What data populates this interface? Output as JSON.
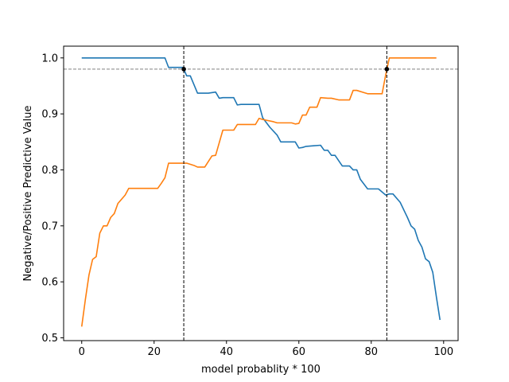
{
  "chart_data": {
    "type": "line",
    "title": "",
    "xlabel": "model probablity * 100",
    "ylabel": "Negative/Positive Predictive Value",
    "xlim": [
      -5,
      104
    ],
    "ylim": [
      0.495,
      1.021
    ],
    "xticks": [
      0,
      20,
      40,
      60,
      80,
      100
    ],
    "xtick_labels": [
      "0",
      "20",
      "40",
      "60",
      "80",
      "100"
    ],
    "yticks": [
      0.5,
      0.6,
      0.7,
      0.8,
      0.9,
      1.0
    ],
    "ytick_labels": [
      "0.5",
      "0.6",
      "0.7",
      "0.8",
      "0.9",
      "1.0"
    ],
    "grid": false,
    "reference_lines": {
      "horizontal": [
        0.98
      ],
      "vertical": [
        28.2,
        84.3
      ],
      "horizontal_color": "#808080",
      "vertical_color": "#000000"
    },
    "markers": [
      {
        "x": 28.2,
        "y": 0.98
      },
      {
        "x": 84.3,
        "y": 0.98
      }
    ],
    "series": [
      {
        "color": "#1f77b4",
        "points": [
          [
            0,
            1.0
          ],
          [
            23,
            1.0
          ],
          [
            24,
            0.983
          ],
          [
            28,
            0.983
          ],
          [
            29,
            0.968
          ],
          [
            30,
            0.968
          ],
          [
            32,
            0.937
          ],
          [
            35,
            0.937
          ],
          [
            37,
            0.939
          ],
          [
            38,
            0.928
          ],
          [
            39,
            0.929
          ],
          [
            42,
            0.929
          ],
          [
            43,
            0.916
          ],
          [
            44,
            0.917
          ],
          [
            49,
            0.917
          ],
          [
            50,
            0.893
          ],
          [
            52,
            0.876
          ],
          [
            54,
            0.862
          ],
          [
            55,
            0.85
          ],
          [
            59,
            0.85
          ],
          [
            60,
            0.839
          ],
          [
            61,
            0.84
          ],
          [
            62,
            0.842
          ],
          [
            64,
            0.843
          ],
          [
            66,
            0.844
          ],
          [
            67,
            0.835
          ],
          [
            68,
            0.835
          ],
          [
            69,
            0.826
          ],
          [
            70,
            0.826
          ],
          [
            72,
            0.807
          ],
          [
            74,
            0.807
          ],
          [
            75,
            0.8
          ],
          [
            76,
            0.8
          ],
          [
            77,
            0.783
          ],
          [
            79,
            0.766
          ],
          [
            82,
            0.766
          ],
          [
            84,
            0.755
          ],
          [
            85,
            0.757
          ],
          [
            86,
            0.757
          ],
          [
            88,
            0.742
          ],
          [
            90,
            0.715
          ],
          [
            91,
            0.7
          ],
          [
            92,
            0.694
          ],
          [
            93,
            0.674
          ],
          [
            94,
            0.662
          ],
          [
            95,
            0.641
          ],
          [
            96,
            0.636
          ],
          [
            97,
            0.617
          ],
          [
            98,
            0.573
          ],
          [
            99,
            0.532
          ]
        ]
      },
      {
        "color": "#ff7f0e",
        "points": [
          [
            0,
            0.52
          ],
          [
            1,
            0.568
          ],
          [
            2,
            0.612
          ],
          [
            3,
            0.64
          ],
          [
            4,
            0.645
          ],
          [
            5,
            0.687
          ],
          [
            6,
            0.7
          ],
          [
            7,
            0.7
          ],
          [
            8,
            0.715
          ],
          [
            9,
            0.722
          ],
          [
            10,
            0.74
          ],
          [
            12,
            0.755
          ],
          [
            13,
            0.767
          ],
          [
            21,
            0.767
          ],
          [
            22,
            0.776
          ],
          [
            23,
            0.786
          ],
          [
            24,
            0.812
          ],
          [
            29,
            0.812
          ],
          [
            31,
            0.808
          ],
          [
            32,
            0.805
          ],
          [
            34,
            0.805
          ],
          [
            36,
            0.825
          ],
          [
            37,
            0.826
          ],
          [
            39,
            0.871
          ],
          [
            42,
            0.871
          ],
          [
            43,
            0.881
          ],
          [
            48,
            0.881
          ],
          [
            49,
            0.892
          ],
          [
            50,
            0.89
          ],
          [
            53,
            0.886
          ],
          [
            54,
            0.884
          ],
          [
            58,
            0.884
          ],
          [
            59,
            0.882
          ],
          [
            60,
            0.883
          ],
          [
            61,
            0.898
          ],
          [
            62,
            0.898
          ],
          [
            63,
            0.912
          ],
          [
            65,
            0.912
          ],
          [
            66,
            0.929
          ],
          [
            68,
            0.928
          ],
          [
            69,
            0.928
          ],
          [
            71,
            0.925
          ],
          [
            74,
            0.925
          ],
          [
            75,
            0.942
          ],
          [
            76,
            0.942
          ],
          [
            78,
            0.938
          ],
          [
            79,
            0.936
          ],
          [
            83,
            0.936
          ],
          [
            84,
            0.97
          ],
          [
            85,
            1.0
          ],
          [
            98,
            1.0
          ]
        ]
      }
    ]
  }
}
